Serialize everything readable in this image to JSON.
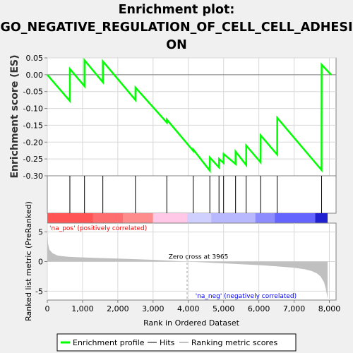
{
  "title_lines": [
    "Enrichment plot:",
    "GO_NEGATIVE_REGULATION_OF_CELL_CELL_ADHESI",
    "ON"
  ],
  "colors": {
    "es_line": "#00ff00",
    "hit_line": "#000000",
    "background": "#f0f0f0",
    "plot_bg": "#ffffff",
    "metric_fill": "#c0c0c0",
    "pos_label": "#ff0000",
    "neg_label": "#0000ff"
  },
  "chart_data": [
    {
      "type": "line",
      "name": "enrichment-profile",
      "ylabel": "Enrichment score (ES)",
      "xlim": [
        0,
        8190
      ],
      "ylim": [
        -0.3,
        0.05
      ],
      "yticks": [
        0.05,
        0.0,
        -0.05,
        -0.1,
        -0.15,
        -0.2,
        -0.25,
        -0.3
      ],
      "ytick_labels": [
        "0.05",
        "0.00",
        "-0.05",
        "-0.10",
        "-0.15",
        "-0.20",
        "-0.25",
        "-0.30"
      ],
      "x": [
        0,
        640,
        641,
        1055,
        1056,
        1575,
        1576,
        2500,
        2501,
        3390,
        3391,
        4140,
        4141,
        4610,
        4611,
        4870,
        4871,
        5000,
        5001,
        5340,
        5341,
        5640,
        5641,
        6050,
        6051,
        6520,
        6521,
        7780,
        7781,
        8050
      ],
      "y": [
        0.0,
        -0.078,
        0.017,
        -0.034,
        0.043,
        -0.022,
        0.04,
        -0.075,
        -0.038,
        -0.142,
        -0.133,
        -0.226,
        -0.222,
        -0.285,
        -0.246,
        -0.275,
        -0.25,
        -0.262,
        -0.235,
        -0.265,
        -0.228,
        -0.268,
        -0.21,
        -0.26,
        -0.18,
        -0.237,
        -0.128,
        -0.283,
        0.03,
        0.0
      ]
    },
    {
      "type": "hits",
      "name": "hits",
      "x": [
        640,
        1055,
        1575,
        2500,
        3390,
        4140,
        4610,
        4870,
        5000,
        5340,
        5640,
        6050,
        6520,
        7780
      ]
    },
    {
      "type": "area",
      "name": "ranked-list-metric",
      "ylabel": "Ranked list metric (PreRanked)",
      "xlabel": "Rank in Ordered Dataset",
      "xlim": [
        0,
        8190
      ],
      "ylim": [
        -6.5,
        6.5
      ],
      "xticks": [
        0,
        1000,
        2000,
        3000,
        4000,
        5000,
        6000,
        7000,
        8000
      ],
      "xtick_labels": [
        "0",
        "1,000",
        "2,000",
        "3,000",
        "4,000",
        "5,000",
        "6,000",
        "7,000",
        "8,000"
      ],
      "yticks": [
        5,
        0,
        -5
      ],
      "ytick_labels": [
        "5",
        "0",
        "-5"
      ],
      "x": [
        0,
        20,
        60,
        150,
        300,
        600,
        1000,
        1500,
        2000,
        2500,
        3000,
        3500,
        3965,
        4500,
        5000,
        5500,
        6000,
        6500,
        7000,
        7300,
        7500,
        7650,
        7750,
        7850,
        7900,
        7930,
        7950
      ],
      "y": [
        5.5,
        3.0,
        2.0,
        1.4,
        1.0,
        0.8,
        0.7,
        0.6,
        0.5,
        0.4,
        0.3,
        0.15,
        0.0,
        -0.15,
        -0.3,
        -0.45,
        -0.6,
        -0.8,
        -1.05,
        -1.3,
        -1.6,
        -2.0,
        -2.5,
        -3.5,
        -4.6,
        -5.6,
        -6.3
      ],
      "annotations": {
        "zero_cross": "Zero cross at 3965",
        "zero_cross_rank": 3965,
        "pos_label": "'na_pos' (positively correlated)",
        "neg_label": "'na_neg' (negatively correlated)"
      }
    }
  ],
  "legend": {
    "items": [
      {
        "label": "Enrichment profile",
        "color": "#00ff00",
        "style": "thick"
      },
      {
        "label": "Hits",
        "color": "#808080",
        "style": "thin"
      },
      {
        "label": "Ranking metric scores",
        "color": "#c0c0c0",
        "style": "thin"
      }
    ]
  }
}
